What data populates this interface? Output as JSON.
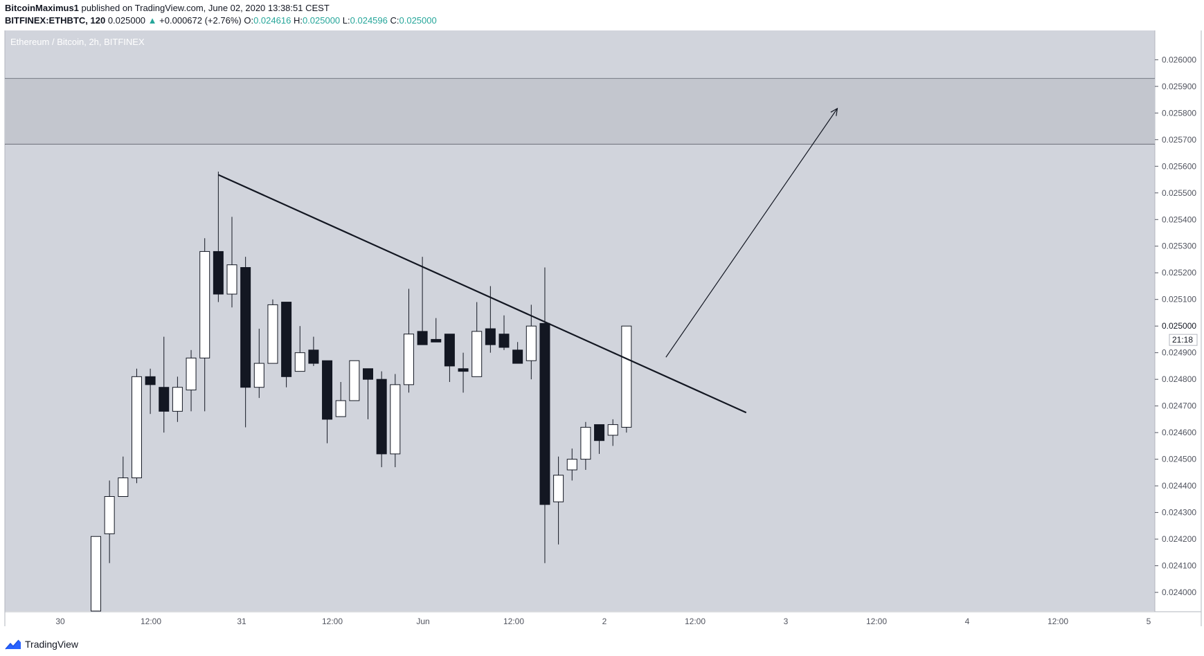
{
  "header": {
    "author": "BitcoinMaximus1",
    "published_text": "published on TradingView.com, June 02, 2020 13:38:51 CEST",
    "symbol": "BITFINEX:ETHBTC, 120",
    "last": "0.025000",
    "change_arrow": "▲",
    "change": "+0.000672 (+2.76%)",
    "o_label": "O:",
    "o_value": "0.024616",
    "h_label": "H:",
    "h_value": "0.025000",
    "l_label": "L:",
    "l_value": "0.024596",
    "c_label": "C:",
    "c_value": "0.025000"
  },
  "brand": {
    "name": "TradingView"
  },
  "colors": {
    "background": "#d1d4dc",
    "zone": "#c3c6ce",
    "bull_body": "#ffffff",
    "bear_body": "#131722",
    "wick": "#131722",
    "up_text": "#26a69a"
  },
  "chart_data": {
    "type": "candlestick",
    "title": "Ethereum / Bitcoin, 2h, BITFINEX",
    "ylim": [
      0.02393,
      0.02611
    ],
    "x_tick_labels": [
      "30",
      "12:00",
      "31",
      "12:00",
      "Jun",
      "12:00",
      "2",
      "12:00",
      "3",
      "12:00",
      "4",
      "12:00",
      "5"
    ],
    "y_ticks": [
      "0.024000",
      "0.024100",
      "0.024200",
      "0.024300",
      "0.024400",
      "0.024500",
      "0.024600",
      "0.024700",
      "0.024800",
      "0.024900",
      "0.025100",
      "0.025200",
      "0.025300",
      "0.025400",
      "0.025500",
      "0.025600",
      "0.025700",
      "0.025800",
      "0.025900",
      "0.026000"
    ],
    "last_price_label": "0.025000",
    "countdown_label": "21:18",
    "candles": [
      {
        "o": 0.02393,
        "h": 0.02421,
        "l": 0.02393,
        "c": 0.02421
      },
      {
        "o": 0.02422,
        "h": 0.02442,
        "l": 0.02411,
        "c": 0.02436
      },
      {
        "o": 0.02436,
        "h": 0.02451,
        "l": 0.02436,
        "c": 0.02443
      },
      {
        "o": 0.02443,
        "h": 0.02484,
        "l": 0.02441,
        "c": 0.02481
      },
      {
        "o": 0.02481,
        "h": 0.02484,
        "l": 0.02467,
        "c": 0.02478
      },
      {
        "o": 0.02477,
        "h": 0.02496,
        "l": 0.0246,
        "c": 0.02468
      },
      {
        "o": 0.02468,
        "h": 0.02481,
        "l": 0.02464,
        "c": 0.02477
      },
      {
        "o": 0.02476,
        "h": 0.02491,
        "l": 0.02468,
        "c": 0.02488
      },
      {
        "o": 0.02488,
        "h": 0.02533,
        "l": 0.02468,
        "c": 0.02528
      },
      {
        "o": 0.02528,
        "h": 0.02558,
        "l": 0.02509,
        "c": 0.02512
      },
      {
        "o": 0.02512,
        "h": 0.02541,
        "l": 0.02507,
        "c": 0.02523
      },
      {
        "o": 0.02522,
        "h": 0.02526,
        "l": 0.02462,
        "c": 0.02477
      },
      {
        "o": 0.02477,
        "h": 0.02499,
        "l": 0.02473,
        "c": 0.02486
      },
      {
        "o": 0.02486,
        "h": 0.0251,
        "l": 0.02486,
        "c": 0.02508
      },
      {
        "o": 0.02509,
        "h": 0.02509,
        "l": 0.02477,
        "c": 0.02481
      },
      {
        "o": 0.02483,
        "h": 0.025,
        "l": 0.02483,
        "c": 0.0249
      },
      {
        "o": 0.02491,
        "h": 0.02496,
        "l": 0.02485,
        "c": 0.02486
      },
      {
        "o": 0.02487,
        "h": 0.02487,
        "l": 0.02456,
        "c": 0.02465
      },
      {
        "o": 0.02466,
        "h": 0.02479,
        "l": 0.02466,
        "c": 0.02472
      },
      {
        "o": 0.02472,
        "h": 0.02487,
        "l": 0.02472,
        "c": 0.02487
      },
      {
        "o": 0.02484,
        "h": 0.02484,
        "l": 0.02465,
        "c": 0.0248
      },
      {
        "o": 0.0248,
        "h": 0.02483,
        "l": 0.02447,
        "c": 0.02452
      },
      {
        "o": 0.02452,
        "h": 0.02482,
        "l": 0.02447,
        "c": 0.02478
      },
      {
        "o": 0.02478,
        "h": 0.02514,
        "l": 0.02475,
        "c": 0.02497
      },
      {
        "o": 0.02498,
        "h": 0.02526,
        "l": 0.02493,
        "c": 0.02493
      },
      {
        "o": 0.02495,
        "h": 0.02503,
        "l": 0.02495,
        "c": 0.02494
      },
      {
        "o": 0.02497,
        "h": 0.02497,
        "l": 0.02479,
        "c": 0.02485
      },
      {
        "o": 0.02484,
        "h": 0.0249,
        "l": 0.02475,
        "c": 0.02483
      },
      {
        "o": 0.02481,
        "h": 0.02509,
        "l": 0.02481,
        "c": 0.02498
      },
      {
        "o": 0.02499,
        "h": 0.02515,
        "l": 0.0249,
        "c": 0.02493
      },
      {
        "o": 0.02497,
        "h": 0.02504,
        "l": 0.02491,
        "c": 0.02492
      },
      {
        "o": 0.02491,
        "h": 0.02494,
        "l": 0.02486,
        "c": 0.02486
      },
      {
        "o": 0.02487,
        "h": 0.02508,
        "l": 0.0248,
        "c": 0.025
      },
      {
        "o": 0.02501,
        "h": 0.02522,
        "l": 0.02411,
        "c": 0.02433
      },
      {
        "o": 0.02434,
        "h": 0.02451,
        "l": 0.02418,
        "c": 0.02444
      },
      {
        "o": 0.02446,
        "h": 0.02454,
        "l": 0.02442,
        "c": 0.0245
      },
      {
        "o": 0.0245,
        "h": 0.02464,
        "l": 0.02446,
        "c": 0.02462
      },
      {
        "o": 0.02463,
        "h": 0.02463,
        "l": 0.02452,
        "c": 0.02457
      },
      {
        "o": 0.02459,
        "h": 0.02465,
        "l": 0.02455,
        "c": 0.02463
      },
      {
        "o": 0.02462,
        "h": 0.025,
        "l": 0.0246,
        "c": 0.025
      }
    ],
    "resistance_zone": {
      "from": 0.025683,
      "to": 0.02593
    },
    "trendline": {
      "from": {
        "bar": 9,
        "price": 0.025568
      },
      "to": {
        "bar": 47.8,
        "price": 0.024675
      }
    },
    "arrow": {
      "from": {
        "bar": 41.9,
        "price": 0.024883
      },
      "to": {
        "bar": 54.5,
        "price": 0.025817
      }
    }
  }
}
